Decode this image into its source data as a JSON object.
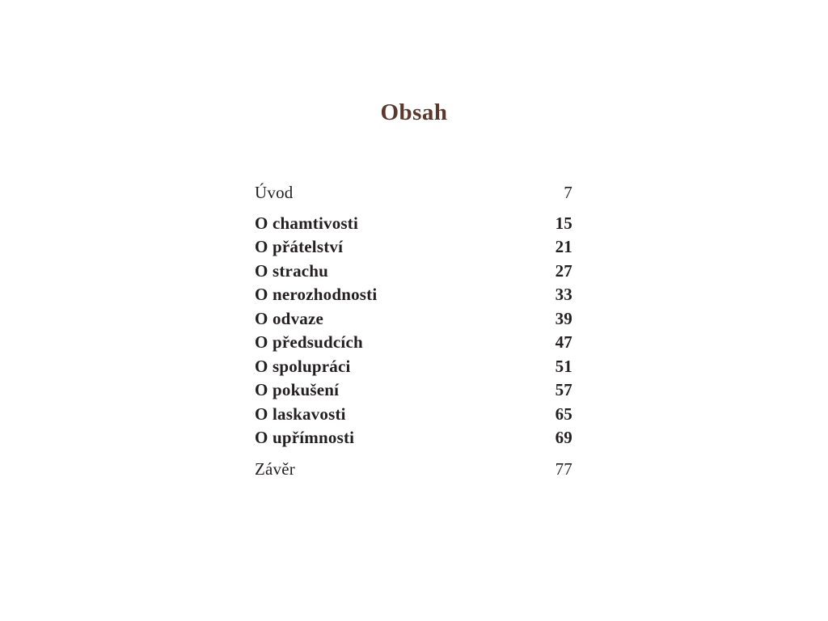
{
  "page": {
    "title": "Obsah",
    "title_color": "#5a382b",
    "text_color": "#231f20",
    "background_color": "#ffffff"
  },
  "toc": {
    "entries": [
      {
        "label": "Úvod",
        "page": "7",
        "style": "regular"
      },
      {
        "label": "O chamtivosti",
        "page": "15",
        "style": "bold"
      },
      {
        "label": "O přátelství",
        "page": "21",
        "style": "bold"
      },
      {
        "label": "O strachu",
        "page": "27",
        "style": "bold"
      },
      {
        "label": "O nerozhodnosti",
        "page": "33",
        "style": "bold"
      },
      {
        "label": "O odvaze",
        "page": "39",
        "style": "bold"
      },
      {
        "label": "O předsudcích",
        "page": "47",
        "style": "bold"
      },
      {
        "label": "O spolupráci",
        "page": "51",
        "style": "bold"
      },
      {
        "label": "O pokušení",
        "page": "57",
        "style": "bold"
      },
      {
        "label": "O laskavosti",
        "page": "65",
        "style": "bold"
      },
      {
        "label": "O upřímnosti",
        "page": "69",
        "style": "bold"
      },
      {
        "label": "Závěr",
        "page": "77",
        "style": "regular"
      }
    ]
  }
}
